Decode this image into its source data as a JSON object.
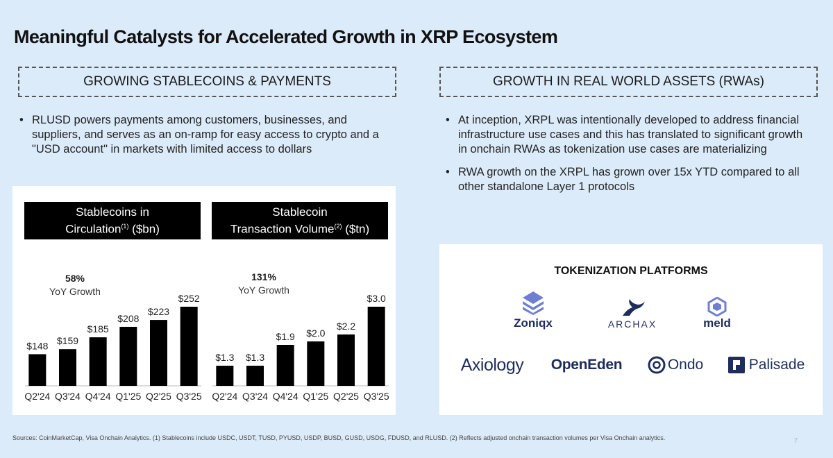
{
  "title": "Meaningful Catalysts for Accelerated Growth in XRP Ecosystem",
  "left": {
    "section_title": "GROWING STABLECOINS & PAYMENTS",
    "bullets": [
      "RLUSD powers payments among customers, businesses, and suppliers, and serves as an on-ramp for easy access to crypto and a \"USD account\" in markets with limited access to dollars"
    ]
  },
  "right": {
    "section_title": "GROWTH IN REAL WORLD ASSETS (RWAs)",
    "bullets": [
      "At inception, XRPL was intentionally developed to address financial infrastructure use cases and this has translated to significant growth in onchain RWAs as tokenization use cases are materializing",
      "RWA growth on the XRPL has grown over 15x YTD compared to all other standalone Layer 1 protocols"
    ]
  },
  "chart_data": [
    {
      "type": "bar",
      "title_line1": "Stablecoins in",
      "title_line2": "Circulation",
      "title_sup": "(1)",
      "title_unit": "($bn)",
      "categories": [
        "Q2'24",
        "Q3'24",
        "Q4'24",
        "Q1'25",
        "Q2'25",
        "Q3'25"
      ],
      "values": [
        148,
        159,
        185,
        208,
        223,
        252
      ],
      "labels": [
        "$148",
        "$159",
        "$185",
        "$208",
        "$223",
        "$252"
      ],
      "ylim": [
        100,
        252
      ],
      "growth_pct": "58%",
      "growth_label": "YoY Growth",
      "bar_color": "#000000"
    },
    {
      "type": "bar",
      "title_line1": "Stablecoin",
      "title_line2": "Transaction Volume",
      "title_sup": "(2)",
      "title_unit": "($tn)",
      "categories": [
        "Q2'24",
        "Q3'24",
        "Q4'24",
        "Q1'25",
        "Q2'25",
        "Q3'25"
      ],
      "values": [
        1.3,
        1.3,
        1.9,
        2.0,
        2.2,
        3.0
      ],
      "labels": [
        "$1.3",
        "$1.3",
        "$1.9",
        "$2.0",
        "$2.2",
        "$3.0"
      ],
      "ylim": [
        1.0,
        3.0
      ],
      "growth_pct": "131%",
      "growth_label": "YoY Growth",
      "bar_color": "#000000"
    }
  ],
  "tokenization": {
    "title": "TOKENIZATION PLATFORMS",
    "logos": {
      "zoniqx": "Zoniqx",
      "archax": "ARCHAX",
      "meld": "meld",
      "axiology": "Axiology",
      "openeden": "OpenEden",
      "ondo": "Ondo",
      "palisade": "Palisade"
    }
  },
  "footer": "Sources: CoinMarketCap, Visa Onchain Analytics. (1) Stablecoins include USDC, USDT, TUSD, PYUSD, USDP, BUSD, GUSD, USDG, FDUSD, and RLUSD. (2) Reflects adjusted onchain transaction volumes per Visa Onchain analytics.",
  "page_number": "7",
  "colors": {
    "background": "#dcebfa",
    "logo_navy": "#1f2d5c",
    "logo_blue": "#6f7fd0"
  }
}
